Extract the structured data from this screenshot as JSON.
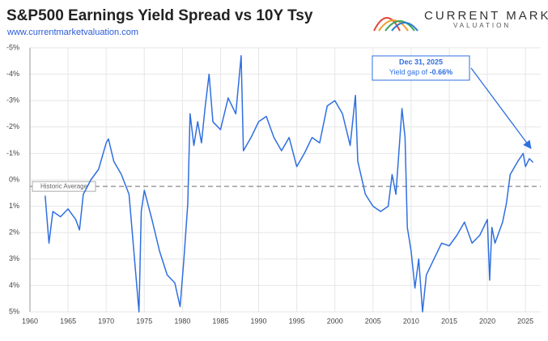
{
  "chart_data": {
    "type": "line",
    "title": "S&P500 Earnings Yield Spread vs 10Y Tsy",
    "subtitle": "www.currentmarketvaluation.com",
    "brand": {
      "name": "CURRENT MARKET",
      "tagline": "VALUATION"
    },
    "x": [
      1962.0,
      1962.5,
      1963.0,
      1964.0,
      1965.0,
      1966.0,
      1966.5,
      1967.0,
      1968.0,
      1969.0,
      1970.0,
      1970.3,
      1971.0,
      1972.0,
      1973.0,
      1973.8,
      1974.3,
      1974.6,
      1975.0,
      1976.0,
      1977.0,
      1978.0,
      1979.0,
      1979.7,
      1980.2,
      1980.7,
      1981.0,
      1981.5,
      1982.0,
      1982.5,
      1983.0,
      1983.5,
      1984.0,
      1985.0,
      1986.0,
      1987.0,
      1987.7,
      1988.0,
      1989.0,
      1990.0,
      1991.0,
      1992.0,
      1993.0,
      1994.0,
      1995.0,
      1996.0,
      1997.0,
      1998.0,
      1999.0,
      2000.0,
      2001.0,
      2002.0,
      2002.7,
      2003.0,
      2004.0,
      2005.0,
      2006.0,
      2007.0,
      2007.5,
      2008.0,
      2008.8,
      2009.2,
      2009.5,
      2010.0,
      2010.5,
      2011.0,
      2011.5,
      2012.0,
      2013.0,
      2014.0,
      2015.0,
      2016.0,
      2017.0,
      2018.0,
      2019.0,
      2020.0,
      2020.3,
      2020.6,
      2021.0,
      2022.0,
      2022.5,
      2023.0,
      2024.0,
      2024.7,
      2025.0,
      2025.5,
      2026.0
    ],
    "series": [
      {
        "name": "Yield gap",
        "color": "#2f6fe0",
        "values": [
          0.6,
          2.4,
          1.2,
          1.4,
          1.1,
          1.5,
          1.9,
          0.55,
          0,
          -0.4,
          -1.4,
          -1.55,
          -0.7,
          -0.2,
          0.55,
          3.3,
          5,
          1.2,
          0.4,
          1.5,
          2.7,
          3.6,
          3.9,
          4.8,
          3.0,
          0.9,
          -2.5,
          -1.3,
          -2.2,
          -1.4,
          -2.8,
          -4.0,
          -2.2,
          -1.9,
          -3.1,
          -2.5,
          -4.7,
          -1.1,
          -1.6,
          -2.2,
          -2.4,
          -1.6,
          -1.1,
          -1.6,
          -0.5,
          -1.0,
          -1.6,
          -1.4,
          -2.8,
          -3.0,
          -2.5,
          -1.3,
          -3.2,
          -0.7,
          0.55,
          1.0,
          1.2,
          1.0,
          -0.2,
          0.55,
          -2.7,
          -1.6,
          1.8,
          2.7,
          4.1,
          3.0,
          5,
          3.6,
          3.0,
          2.4,
          2.5,
          2.1,
          1.6,
          2.4,
          2.1,
          1.5,
          3.8,
          1.8,
          2.4,
          1.6,
          0.9,
          -0.2,
          -0.7,
          -1.0,
          -0.5,
          -0.8,
          -0.66
        ]
      }
    ],
    "reference": {
      "label": "Historic Average",
      "value": 0.25
    },
    "annotation": {
      "date": "Dec 31, 2025",
      "prefix": "Yield gap of",
      "value_label": "-0.66%"
    },
    "xlim": [
      1960,
      2027
    ],
    "xticks": [
      1960,
      1965,
      1970,
      1975,
      1980,
      1985,
      1990,
      1995,
      2000,
      2005,
      2010,
      2015,
      2020,
      2025
    ],
    "ylim": [
      -5,
      5
    ],
    "y_inverted": true,
    "yticks": [
      {
        "value": -5,
        "label": "-5%"
      },
      {
        "value": -4,
        "label": "-4%"
      },
      {
        "value": -3,
        "label": "-3%"
      },
      {
        "value": -2,
        "label": "-2%"
      },
      {
        "value": -1,
        "label": "-1%"
      },
      {
        "value": 0,
        "label": "0%"
      },
      {
        "value": 1,
        "label": "1%"
      },
      {
        "value": 2,
        "label": "2%"
      },
      {
        "value": 3,
        "label": "3%"
      },
      {
        "value": 4,
        "label": "4%"
      },
      {
        "value": 5,
        "label": "5%"
      }
    ],
    "grid": true
  }
}
